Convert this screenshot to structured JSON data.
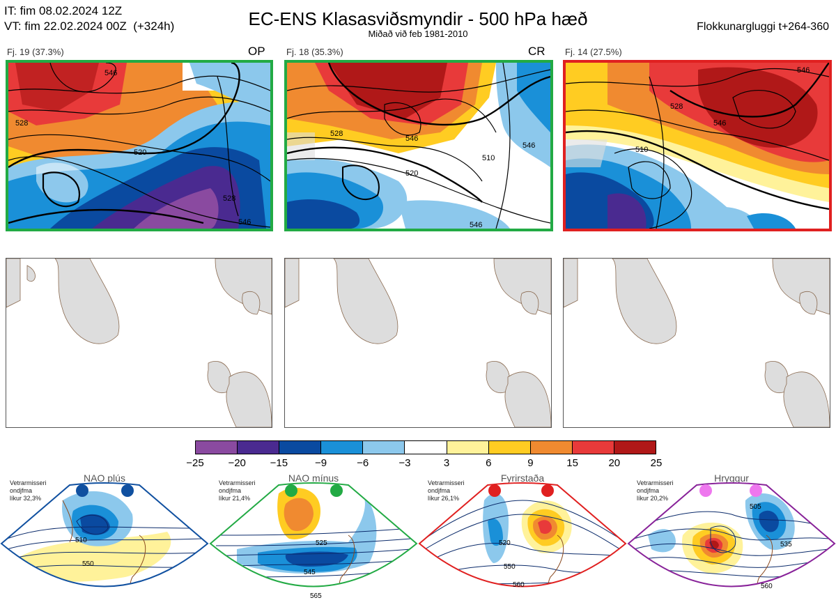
{
  "header": {
    "it_line": "IT: fim 08.02.2024 12Z",
    "vt_line": "VT: fim 22.02.2024 00Z  (+324h)",
    "title": "EC-ENS Klasasviðsmyndir - 500 hPa hæð",
    "subtitle": "Miðað við feb 1981-2010",
    "window": "Flokkunargluggi t+264-360"
  },
  "clusters": [
    {
      "label": "Fj. 19 (37.3%)",
      "tag": "OP",
      "border_color": "#22aa44",
      "contours": [
        "546",
        "528",
        "520",
        "528",
        "546"
      ]
    },
    {
      "label": "Fj. 18 (35.3%)",
      "tag": "CR",
      "border_color": "#22aa44",
      "contours": [
        "528",
        "510",
        "520",
        "546",
        "546",
        "546"
      ]
    },
    {
      "label": "Fj. 14 (27.5%)",
      "tag": "",
      "border_color": "#e02020",
      "contours": [
        "510",
        "528",
        "546",
        "546"
      ]
    }
  ],
  "colorbar": {
    "colors": [
      "#8a4aa0",
      "#4a2a90",
      "#0a4aa0",
      "#1a90d8",
      "#8cc8ec",
      "#ffffff",
      "#fff29a",
      "#ffcc22",
      "#f08a30",
      "#e83a3a",
      "#b01818"
    ],
    "ticks": [
      "−25",
      "−20",
      "−15",
      "−9",
      "−6",
      "−3",
      "3",
      "6",
      "9",
      "15",
      "20",
      "25"
    ]
  },
  "regimes": [
    {
      "name": "NAO plús",
      "desc": "Vetrarmisseri\nondjfma\nlíkur 32,3%",
      "color": "#1050a0",
      "dot_color": "#1050a0",
      "contours": [
        "510",
        "550"
      ]
    },
    {
      "name": "NAO mínus",
      "desc": "Vetrarmisseri\nondjfma\nlíkur 21,4%",
      "color": "#22aa44",
      "dot_color": "#22aa44",
      "contours": [
        "525",
        "545",
        "565"
      ]
    },
    {
      "name": "Fyrirstaða",
      "desc": "Vetrarmisseri\nondjfma\nlíkur 26,1%",
      "color": "#e02020",
      "dot_color": "#e02020",
      "contours": [
        "520",
        "550",
        "560"
      ]
    },
    {
      "name": "Hryggur",
      "desc": "Vetrarmisseri\nondjfma\nlíkur 20,2%",
      "color": "#882299",
      "dot_color": "#ee77ee",
      "contours": [
        "505",
        "535",
        "560"
      ]
    }
  ]
}
